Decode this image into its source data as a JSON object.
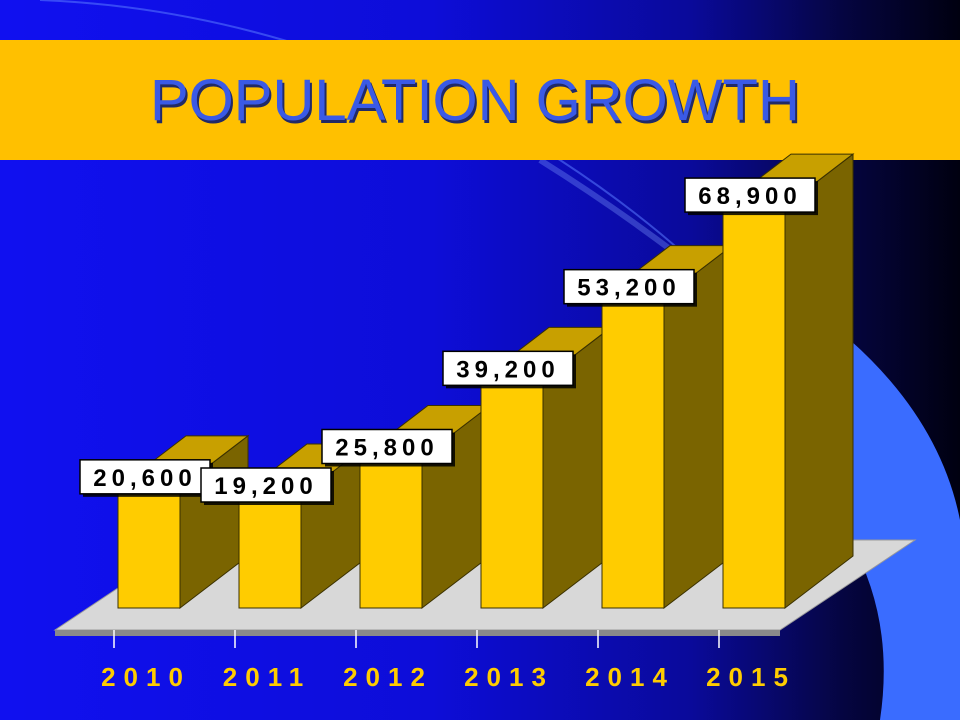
{
  "slide": {
    "title": "POPULATION GROWTH"
  },
  "colors": {
    "background_left": "#1010f0",
    "background_right": "#000010",
    "title_band": "#ffc000",
    "title_text": "#3a5ae6",
    "bar_front": "#ffcc00",
    "bar_side": "#7a6400",
    "bar_top": "#c8a000",
    "floor": "#d8d8d8",
    "accent_shape": "#3a6cff",
    "label_box": "#ffffff",
    "label_text": "#000000",
    "axis_text": "#ffcc00"
  },
  "chart_data": {
    "type": "bar",
    "style": "3d",
    "title": "POPULATION GROWTH",
    "categories": [
      "2010",
      "2011",
      "2012",
      "2013",
      "2014",
      "2015"
    ],
    "values": [
      20600,
      19200,
      25800,
      39200,
      53200,
      68900
    ],
    "data_labels": [
      "20,600",
      "19,200",
      "25,800",
      "39,200",
      "53,200",
      "68,900"
    ],
    "xlabel": "",
    "ylabel": "",
    "ylim": [
      0,
      72000
    ],
    "grid": false,
    "legend": "none"
  }
}
